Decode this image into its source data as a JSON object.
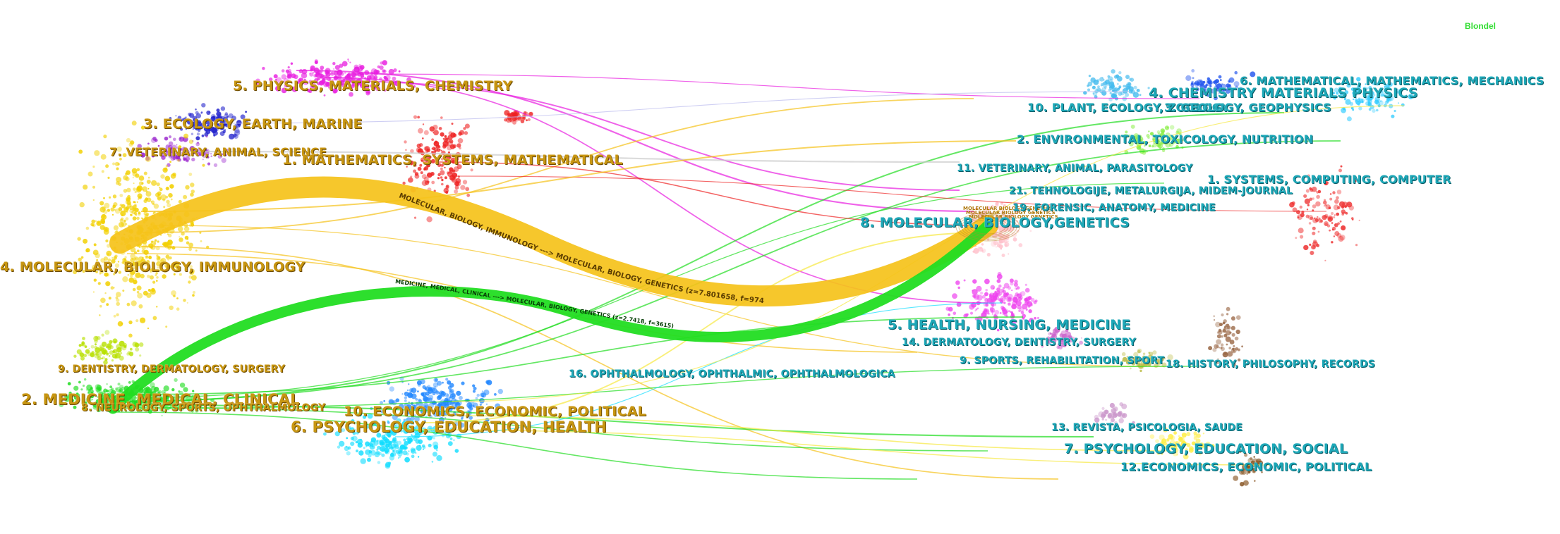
{
  "algorithm": "Blondel",
  "left_clusters": [
    {
      "id": "l5",
      "label": "5. PHYSICS, MATERIALS, CHEMISTRY",
      "color": "#e81ee0"
    },
    {
      "id": "l3",
      "label": "3. ECOLOGY, EARTH, MARINE",
      "color": "#2222cc"
    },
    {
      "id": "l7",
      "label": "7. VETERINARY, ANIMAL, SCIENCE",
      "color": "#9922cc"
    },
    {
      "id": "l1",
      "label": "1. MATHEMATICS, SYSTEMS, MATHEMATICAL",
      "color": "#ee2222"
    },
    {
      "id": "l4",
      "label": "4. MOLECULAR, BIOLOGY, IMMUNOLOGY",
      "color": "#f2d000"
    },
    {
      "id": "l9",
      "label": "9. DENTISTRY, DERMATOLOGY, SURGERY",
      "color": "#b8e000"
    },
    {
      "id": "l2",
      "label": "2. MEDICINE, MEDICAL, CLINICAL",
      "color": "#22dd22"
    },
    {
      "id": "l8",
      "label": "8. NEUROLOGY, SPORTS, OPHTHALMOLOGY",
      "color": "#66ee66"
    },
    {
      "id": "l10",
      "label": "10. ECONOMICS, ECONOMIC, POLITICAL",
      "color": "#2288ff"
    },
    {
      "id": "l6",
      "label": "6. PSYCHOLOGY, EDUCATION, HEALTH",
      "color": "#11ddff"
    }
  ],
  "right_clusters": [
    {
      "id": "r6",
      "label": "6. MATHEMATICAL, MATHEMATICS, MECHANICS",
      "color": "#33ccff"
    },
    {
      "id": "r4",
      "label": "4. CHEMISTRY  MATERIALS  PHYSICS",
      "color": "#2255ee"
    },
    {
      "id": "r10",
      "label": "10. PLANT, ECOLOGY, ZOOLOGY",
      "color": "#44bbee"
    },
    {
      "id": "r3",
      "label": "3. GEOLOGY, GEOPHYSICS",
      "color": "#6688aa"
    },
    {
      "id": "r2",
      "label": "2. ENVIRONMENTAL, TOXICOLOGY, NUTRITION",
      "color": "#88ee44"
    },
    {
      "id": "r11",
      "label": "11. VETERINARY, ANIMAL, PARASITOLOGY",
      "color": "#aaccaa"
    },
    {
      "id": "r1",
      "label": "1. SYSTEMS, COMPUTING, COMPUTER",
      "color": "#ee3333"
    },
    {
      "id": "r21",
      "label": "21. TEHNOLOGIJE, METALURGIJA, MIDEM-JOURNAL",
      "color": "#999999"
    },
    {
      "id": "r19",
      "label": "19. FORENSIC, ANATOMY, MEDICINE",
      "color": "#aaaaaa"
    },
    {
      "id": "r8",
      "label": "8. MOLECULAR, BIOLOGY,GENETICS",
      "color": "#ffc0cb"
    },
    {
      "id": "r5",
      "label": "5. HEALTH, NURSING, MEDICINE",
      "color": "#ee44ee"
    },
    {
      "id": "r14",
      "label": "14. DERMATOLOGY, DENTISTRY, SURGERY",
      "color": "#cc66cc"
    },
    {
      "id": "r9",
      "label": "9. SPORTS, REHABILITATION, SPORT",
      "color": "#bbbb44"
    },
    {
      "id": "r18",
      "label": "18. HISTORY, PHILOSOPHY, RECORDS",
      "color": "#996644"
    },
    {
      "id": "r16",
      "label": "16. OPHTHALMOLOGY, OPHTHALMIC, OPHTHALMOLOGICA",
      "color": "#88dd88"
    },
    {
      "id": "r13",
      "label": "13. REVISTA, PSICOLOGIA, SAUDE",
      "color": "#cc99cc"
    },
    {
      "id": "r7",
      "label": "7.  PSYCHOLOGY, EDUCATION, SOCIAL",
      "color": "#ffee44"
    },
    {
      "id": "r12",
      "label": "12.ECONOMICS, ECONOMIC, POLITICAL",
      "color": "#885522"
    }
  ],
  "main_paths": [
    {
      "label": "MOLECULAR, BIOLOGY, IMMUNOLOGY ---> MOLECULAR, BIOLOGY, GENETICS (z=7.801658, f=9743)",
      "color": "#f5c21a"
    },
    {
      "label": "MEDICINE, MEDICAL, CLINICAL ---> MOLECULAR, BIOLOGY, GENETICS (z=2.7418, f=3615)",
      "color": "#22dd22"
    }
  ],
  "cited_node_text": "MOLECULAR BIOLOGY GENETICS",
  "colors": {
    "left_label": "#c89612",
    "right_label": "#1ea8b8",
    "algorithm_label": "#33dd33",
    "background": "#ffffff"
  }
}
